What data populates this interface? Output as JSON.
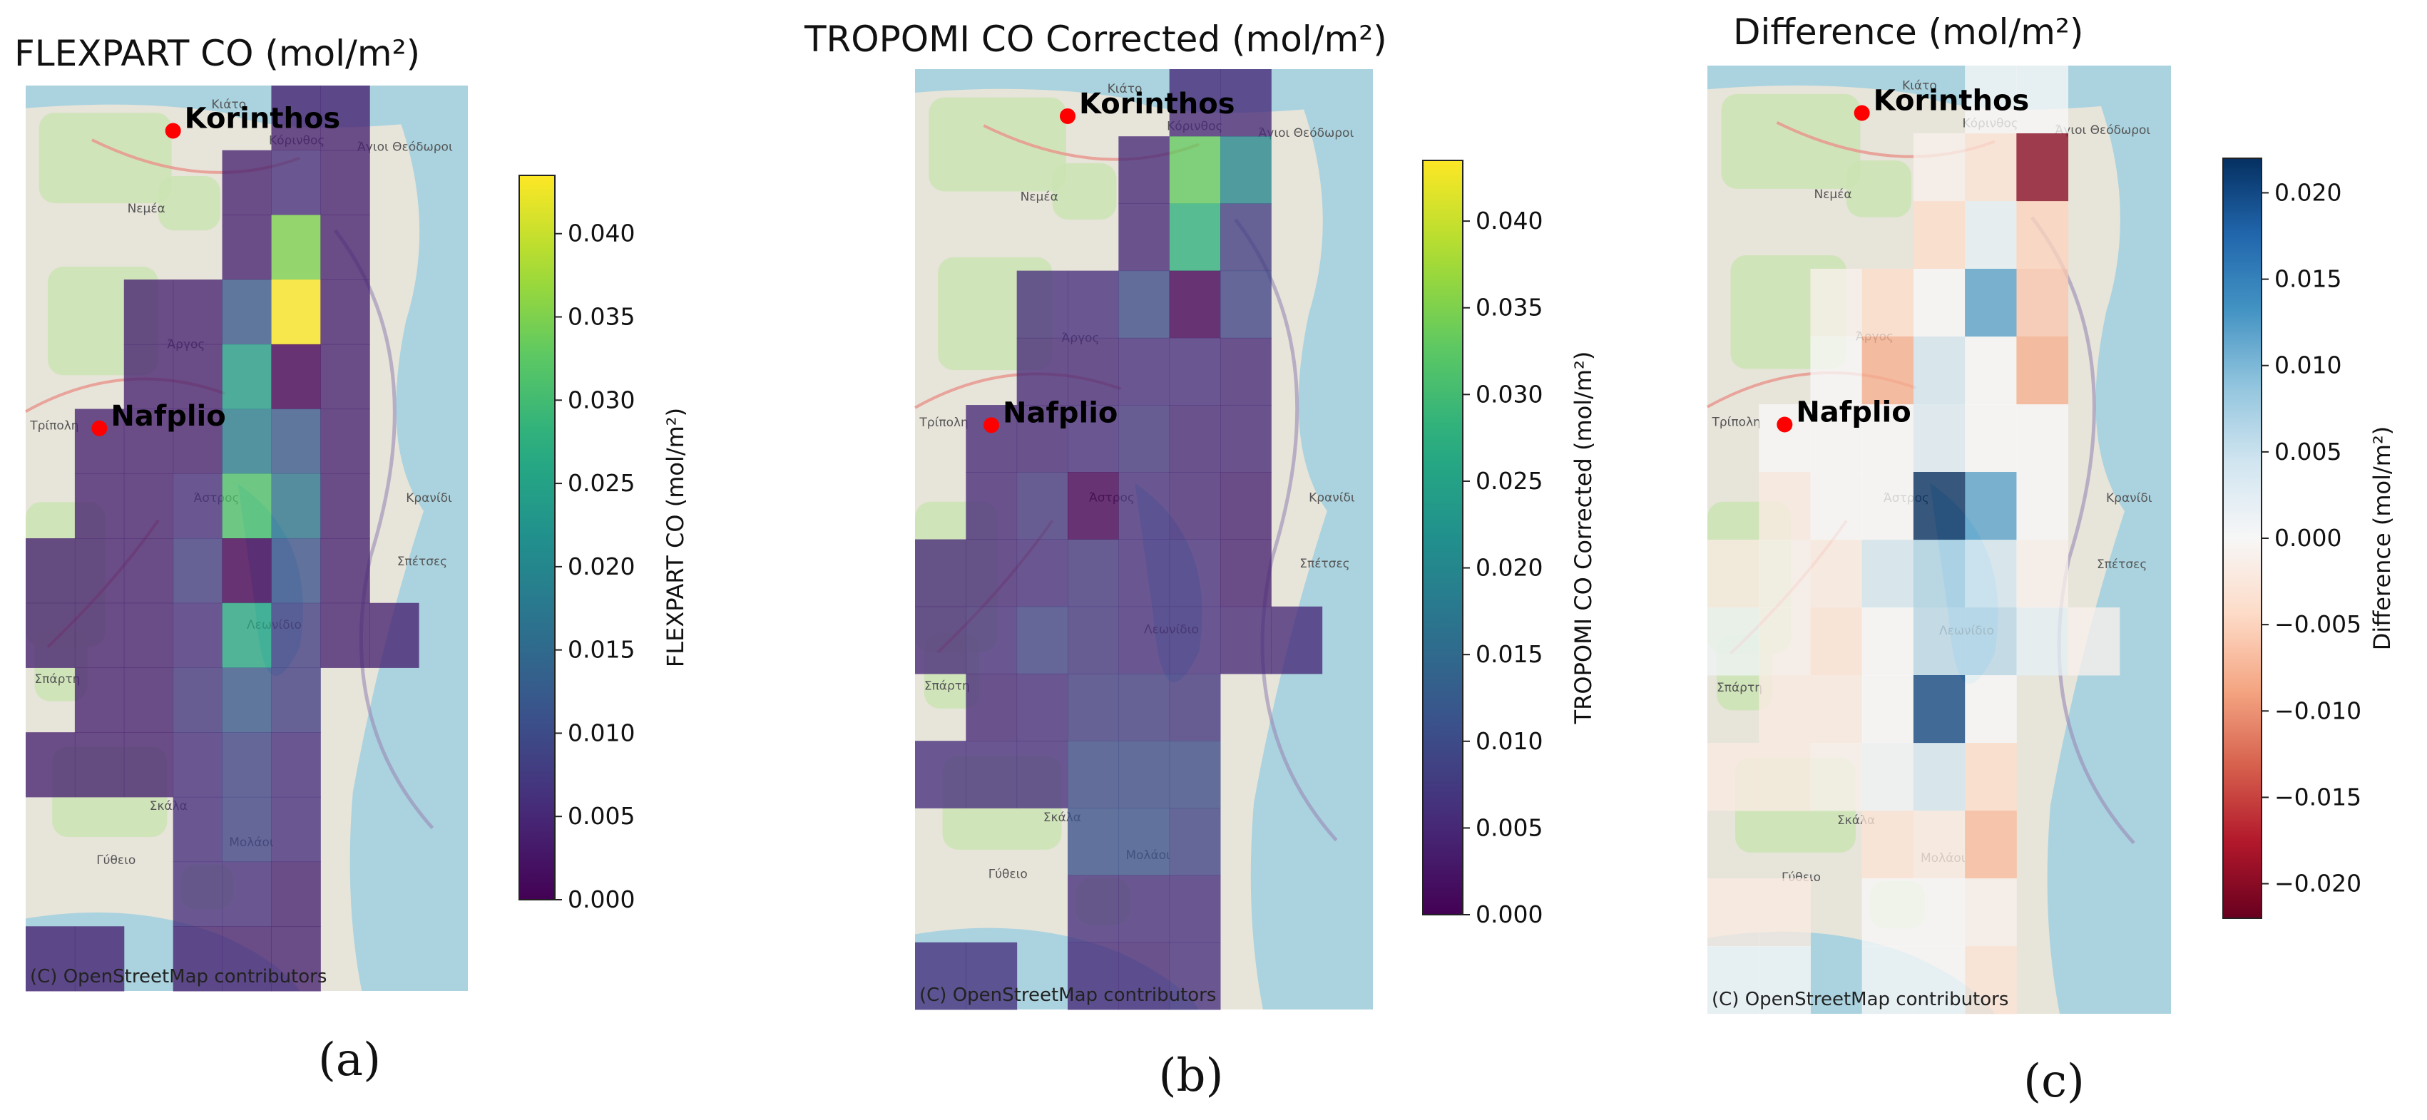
{
  "figure": {
    "sub_labels": [
      "(a)",
      "(b)",
      "(c)"
    ],
    "attribution": "(C) OpenStreetMap contributors",
    "cities": [
      {
        "name": "Korinthos",
        "col": 2.5,
        "row": 0.7
      },
      {
        "name": "Nafplio",
        "col": 1.0,
        "row": 5.3
      }
    ],
    "map_towns": [
      "Κιάτο",
      "Κόρινθος",
      "Άγιοι Θεόδωροι",
      "Νεμέα",
      "Άργος",
      "Τρίπολη",
      "Άστρος",
      "Κρανίδι",
      "Σπέτσες",
      "Λεωνίδιο",
      "Σπάρτη",
      "Σκάλα",
      "Μολάοι",
      "Γύθειο"
    ]
  },
  "chart_data": [
    {
      "type": "heatmap",
      "title": "FLEXPART CO (mol/m²)",
      "colorbar_label": "FLEXPART CO (mol/m²)",
      "colormap": "viridis",
      "vmin": 0.0,
      "vmax": 0.0435,
      "ticks": [
        0.0,
        0.005,
        0.01,
        0.015,
        0.02,
        0.025,
        0.03,
        0.035,
        0.04
      ],
      "tick_labels": [
        "0.000",
        "0.005",
        "0.010",
        "0.015",
        "0.020",
        "0.025",
        "0.030",
        "0.035",
        "0.040"
      ],
      "grid_cols": 9,
      "grid_rows": 14,
      "cells": [
        [
          5,
          0,
          0.004
        ],
        [
          6,
          0,
          0.004
        ],
        [
          4,
          1,
          0.004
        ],
        [
          5,
          1,
          0.006
        ],
        [
          6,
          1,
          0.004
        ],
        [
          4,
          2,
          0.004
        ],
        [
          5,
          2,
          0.035
        ],
        [
          6,
          2,
          0.004
        ],
        [
          2,
          3,
          0.004
        ],
        [
          3,
          3,
          0.004
        ],
        [
          4,
          3,
          0.012
        ],
        [
          5,
          3,
          0.0435
        ],
        [
          6,
          3,
          0.004
        ],
        [
          2,
          4,
          0.004
        ],
        [
          3,
          4,
          0.004
        ],
        [
          4,
          4,
          0.024
        ],
        [
          5,
          4,
          0.0
        ],
        [
          6,
          4,
          0.004
        ],
        [
          1,
          5,
          0.004
        ],
        [
          2,
          5,
          0.004
        ],
        [
          3,
          5,
          0.004
        ],
        [
          4,
          5,
          0.018
        ],
        [
          5,
          5,
          0.012
        ],
        [
          6,
          5,
          0.004
        ],
        [
          1,
          6,
          0.004
        ],
        [
          2,
          6,
          0.004
        ],
        [
          3,
          6,
          0.006
        ],
        [
          4,
          6,
          0.031
        ],
        [
          5,
          6,
          0.017
        ],
        [
          6,
          6,
          0.004
        ],
        [
          0,
          7,
          0.004
        ],
        [
          1,
          7,
          0.004
        ],
        [
          2,
          7,
          0.004
        ],
        [
          3,
          7,
          0.008
        ],
        [
          4,
          7,
          0.0
        ],
        [
          5,
          7,
          0.011
        ],
        [
          6,
          7,
          0.004
        ],
        [
          0,
          8,
          0.004
        ],
        [
          1,
          8,
          0.004
        ],
        [
          2,
          8,
          0.004
        ],
        [
          3,
          8,
          0.006
        ],
        [
          4,
          8,
          0.026
        ],
        [
          5,
          8,
          0.008
        ],
        [
          6,
          8,
          0.004
        ],
        [
          7,
          8,
          0.004
        ],
        [
          1,
          9,
          0.004
        ],
        [
          2,
          9,
          0.004
        ],
        [
          3,
          9,
          0.007
        ],
        [
          4,
          9,
          0.012
        ],
        [
          5,
          9,
          0.008
        ],
        [
          0,
          10,
          0.004
        ],
        [
          1,
          10,
          0.004
        ],
        [
          2,
          10,
          0.004
        ],
        [
          3,
          10,
          0.006
        ],
        [
          4,
          10,
          0.009
        ],
        [
          5,
          10,
          0.006
        ],
        [
          3,
          11,
          0.006
        ],
        [
          4,
          11,
          0.009
        ],
        [
          5,
          11,
          0.006
        ],
        [
          3,
          12,
          0.006
        ],
        [
          4,
          12,
          0.006
        ],
        [
          5,
          12,
          0.004
        ],
        [
          0,
          13,
          0.004
        ],
        [
          1,
          13,
          0.004
        ],
        [
          3,
          13,
          0.004
        ],
        [
          4,
          13,
          0.004
        ],
        [
          5,
          13,
          0.004
        ]
      ]
    },
    {
      "type": "heatmap",
      "title": "TROPOMI CO Corrected (mol/m²)",
      "colorbar_label": "TROPOMI CO Corrected (mol/m²)",
      "colormap": "viridis",
      "vmin": 0.0,
      "vmax": 0.0435,
      "ticks": [
        0.0,
        0.005,
        0.01,
        0.015,
        0.02,
        0.025,
        0.03,
        0.035,
        0.04
      ],
      "tick_labels": [
        "0.000",
        "0.005",
        "0.010",
        "0.015",
        "0.020",
        "0.025",
        "0.030",
        "0.035",
        "0.040"
      ],
      "grid_cols": 9,
      "grid_rows": 14,
      "cells": [
        [
          5,
          0,
          0.005
        ],
        [
          6,
          0,
          0.005
        ],
        [
          4,
          1,
          0.005
        ],
        [
          5,
          1,
          0.033
        ],
        [
          6,
          1,
          0.02
        ],
        [
          4,
          2,
          0.005
        ],
        [
          5,
          2,
          0.028
        ],
        [
          6,
          2,
          0.008
        ],
        [
          2,
          3,
          0.006
        ],
        [
          3,
          3,
          0.006
        ],
        [
          4,
          3,
          0.01
        ],
        [
          5,
          3,
          0.0
        ],
        [
          6,
          3,
          0.009
        ],
        [
          2,
          4,
          0.005
        ],
        [
          3,
          4,
          0.005
        ],
        [
          4,
          4,
          0.006
        ],
        [
          5,
          4,
          0.006
        ],
        [
          6,
          4,
          0.005
        ],
        [
          1,
          5,
          0.005
        ],
        [
          2,
          5,
          0.005
        ],
        [
          3,
          5,
          0.006
        ],
        [
          4,
          5,
          0.007
        ],
        [
          5,
          5,
          0.005
        ],
        [
          6,
          5,
          0.005
        ],
        [
          1,
          6,
          0.005
        ],
        [
          2,
          6,
          0.007
        ],
        [
          3,
          6,
          0.0
        ],
        [
          4,
          6,
          0.006
        ],
        [
          5,
          6,
          0.005
        ],
        [
          6,
          6,
          0.004
        ],
        [
          0,
          7,
          0.005
        ],
        [
          1,
          7,
          0.005
        ],
        [
          2,
          7,
          0.006
        ],
        [
          3,
          7,
          0.007
        ],
        [
          4,
          7,
          0.006
        ],
        [
          5,
          7,
          0.006
        ],
        [
          6,
          7,
          0.004
        ],
        [
          0,
          8,
          0.005
        ],
        [
          1,
          8,
          0.006
        ],
        [
          2,
          8,
          0.009
        ],
        [
          3,
          8,
          0.007
        ],
        [
          4,
          8,
          0.006
        ],
        [
          5,
          8,
          0.006
        ],
        [
          6,
          8,
          0.005
        ],
        [
          7,
          8,
          0.005
        ],
        [
          1,
          9,
          0.005
        ],
        [
          2,
          9,
          0.006
        ],
        [
          3,
          9,
          0.008
        ],
        [
          4,
          9,
          0.008
        ],
        [
          5,
          9,
          0.007
        ],
        [
          0,
          10,
          0.006
        ],
        [
          1,
          10,
          0.006
        ],
        [
          2,
          10,
          0.006
        ],
        [
          3,
          10,
          0.01
        ],
        [
          4,
          10,
          0.01
        ],
        [
          5,
          10,
          0.01
        ],
        [
          3,
          11,
          0.011
        ],
        [
          4,
          11,
          0.011
        ],
        [
          5,
          11,
          0.009
        ],
        [
          3,
          12,
          0.006
        ],
        [
          4,
          12,
          0.006
        ],
        [
          5,
          12,
          0.006
        ],
        [
          0,
          13,
          0.006
        ],
        [
          1,
          13,
          0.006
        ],
        [
          3,
          13,
          0.005
        ],
        [
          4,
          13,
          0.005
        ],
        [
          5,
          13,
          0.006
        ]
      ]
    },
    {
      "type": "heatmap",
      "title": "Difference (mol/m²)",
      "colorbar_label": "Difference (mol/m²)",
      "colormap": "RdBu",
      "vmin": -0.022,
      "vmax": 0.022,
      "ticks": [
        -0.02,
        -0.015,
        -0.01,
        -0.005,
        0.0,
        0.005,
        0.01,
        0.015,
        0.02
      ],
      "tick_labels": [
        "−0.020",
        "−0.015",
        "−0.010",
        "−0.005",
        "0.000",
        "0.005",
        "0.010",
        "0.015",
        "0.020"
      ],
      "grid_cols": 9,
      "grid_rows": 14,
      "cells": [
        [
          5,
          0,
          0.0
        ],
        [
          6,
          0,
          0.0
        ],
        [
          4,
          1,
          -0.001
        ],
        [
          5,
          1,
          -0.003
        ],
        [
          6,
          1,
          -0.02
        ],
        [
          4,
          2,
          -0.004
        ],
        [
          5,
          2,
          0.002
        ],
        [
          6,
          2,
          -0.005
        ],
        [
          2,
          3,
          -0.001
        ],
        [
          3,
          3,
          -0.004
        ],
        [
          4,
          3,
          0.0
        ],
        [
          5,
          3,
          0.012
        ],
        [
          6,
          3,
          -0.006
        ],
        [
          2,
          4,
          0.0
        ],
        [
          3,
          4,
          -0.008
        ],
        [
          4,
          4,
          0.004
        ],
        [
          5,
          4,
          0.0
        ],
        [
          6,
          4,
          -0.008
        ],
        [
          1,
          5,
          0.0
        ],
        [
          2,
          5,
          0.0
        ],
        [
          3,
          5,
          0.0
        ],
        [
          4,
          5,
          0.003
        ],
        [
          5,
          5,
          0.0
        ],
        [
          6,
          5,
          0.0
        ],
        [
          1,
          6,
          -0.002
        ],
        [
          2,
          6,
          0.0
        ],
        [
          3,
          6,
          0.0
        ],
        [
          4,
          6,
          0.022
        ],
        [
          5,
          6,
          0.012
        ],
        [
          6,
          6,
          0.0
        ],
        [
          0,
          7,
          -0.002
        ],
        [
          1,
          7,
          -0.001
        ],
        [
          2,
          7,
          -0.002
        ],
        [
          3,
          7,
          0.004
        ],
        [
          4,
          7,
          0.007
        ],
        [
          5,
          7,
          0.004
        ],
        [
          6,
          7,
          -0.001
        ],
        [
          0,
          8,
          0.001
        ],
        [
          1,
          8,
          -0.001
        ],
        [
          2,
          8,
          -0.003
        ],
        [
          3,
          8,
          0.0
        ],
        [
          4,
          8,
          0.006
        ],
        [
          5,
          8,
          0.006
        ],
        [
          6,
          8,
          0.002
        ],
        [
          7,
          8,
          -0.001
        ],
        [
          1,
          9,
          -0.002
        ],
        [
          2,
          9,
          -0.002
        ],
        [
          3,
          9,
          0.0
        ],
        [
          4,
          9,
          0.02
        ],
        [
          5,
          9,
          0.0
        ],
        [
          0,
          10,
          -0.002
        ],
        [
          1,
          10,
          -0.002
        ],
        [
          2,
          10,
          -0.001
        ],
        [
          3,
          10,
          0.001
        ],
        [
          4,
          10,
          0.004
        ],
        [
          5,
          10,
          -0.004
        ],
        [
          3,
          11,
          -0.003
        ],
        [
          4,
          11,
          -0.002
        ],
        [
          5,
          11,
          -0.007
        ],
        [
          0,
          12,
          -0.002
        ],
        [
          1,
          12,
          -0.002
        ],
        [
          3,
          12,
          0.0
        ],
        [
          4,
          12,
          0.0
        ],
        [
          5,
          12,
          -0.001
        ],
        [
          0,
          13,
          0.0
        ],
        [
          1,
          13,
          0.0
        ],
        [
          3,
          13,
          0.0
        ],
        [
          4,
          13,
          0.0
        ],
        [
          5,
          13,
          -0.003
        ]
      ]
    }
  ]
}
